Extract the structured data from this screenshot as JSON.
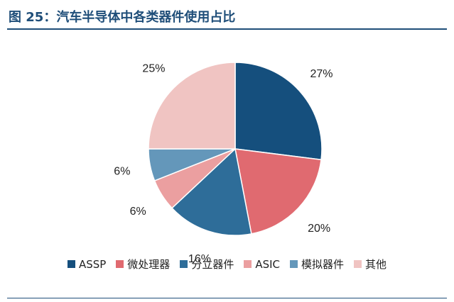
{
  "figure": {
    "title": "图 25：汽车半导体中各类器件使用占比",
    "title_color": "#1f4e79",
    "rule_color": "#1f4e79"
  },
  "chart_data": {
    "type": "pie",
    "title": "图 25：汽车半导体中各类器件使用占比",
    "legend_position": "bottom",
    "start": "12 o'clock, clockwise",
    "categories": [
      "ASSP",
      "微处理器",
      "分立器件",
      "ASIC",
      "模拟器件",
      "其他"
    ],
    "values": [
      27,
      20,
      16,
      6,
      6,
      25
    ],
    "labels": [
      "27%",
      "20%",
      "16%",
      "6%",
      "6%",
      "25%"
    ],
    "colors": [
      "#154f7d",
      "#e06a70",
      "#2e6d99",
      "#eb9fa0",
      "#6497ba",
      "#f0c4c2"
    ]
  }
}
